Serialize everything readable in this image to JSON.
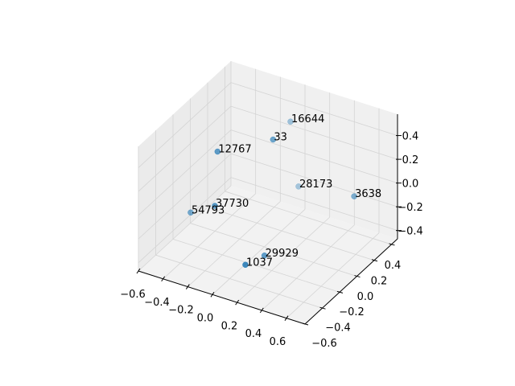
{
  "chart_data": {
    "type": "scatter3d",
    "title": "",
    "xlabel": "",
    "ylabel": "",
    "zlabel": "",
    "xlim": [
      -0.6,
      0.75
    ],
    "ylim": [
      -0.6,
      0.47
    ],
    "zlim": [
      -0.47,
      0.58
    ],
    "x_ticks": [
      "−0.6",
      "−0.4",
      "−0.2",
      "0.0",
      "0.2",
      "0.4",
      "0.6"
    ],
    "x_tick_values": [
      -0.6,
      -0.4,
      -0.2,
      0.0,
      0.2,
      0.4,
      0.6
    ],
    "y_ticks": [
      "−0.6",
      "−0.4",
      "−0.2",
      "0.0",
      "0.2",
      "0.4"
    ],
    "y_tick_values": [
      -0.6,
      -0.4,
      -0.2,
      0.0,
      0.2,
      0.4
    ],
    "z_ticks": [
      "−0.4",
      "−0.2",
      "0.0",
      "0.2",
      "0.4"
    ],
    "z_tick_values": [
      -0.4,
      -0.2,
      0.0,
      0.2,
      0.4
    ],
    "grid": true,
    "color": "#1f77b4",
    "points": [
      {
        "label": "16644",
        "x": 0.03,
        "y": 0.26,
        "z": 0.42
      },
      {
        "label": "33",
        "x": 0.12,
        "y": -0.07,
        "z": 0.52
      },
      {
        "label": "12767",
        "x": -0.26,
        "y": -0.17,
        "z": 0.36
      },
      {
        "label": "28173",
        "x": 0.06,
        "y": 0.31,
        "z": -0.15
      },
      {
        "label": "3638",
        "x": 0.7,
        "y": 0.04,
        "z": 0.16
      },
      {
        "label": "37730",
        "x": -0.24,
        "y": -0.23,
        "z": -0.05
      },
      {
        "label": "54793",
        "x": -0.59,
        "y": -0.01,
        "z": -0.37
      },
      {
        "label": "29929",
        "x": 0.12,
        "y": -0.17,
        "z": -0.39
      },
      {
        "label": "1037",
        "x": 0.12,
        "y": -0.39,
        "z": -0.32
      }
    ]
  }
}
